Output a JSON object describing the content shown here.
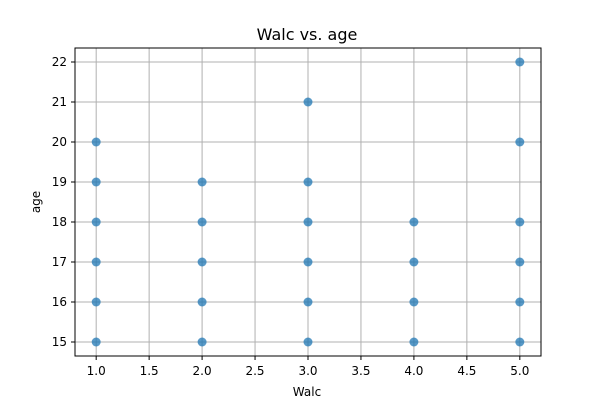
{
  "chart_data": {
    "type": "scatter",
    "title": "Walc vs. age",
    "xlabel": "Walc",
    "ylabel": "age",
    "xlim": [
      0.8,
      5.2
    ],
    "ylim": [
      14.65,
      22.35
    ],
    "xticks": [
      1.0,
      1.5,
      2.0,
      2.5,
      3.0,
      3.5,
      4.0,
      4.5,
      5.0
    ],
    "xtick_labels": [
      "1.0",
      "1.5",
      "2.0",
      "2.5",
      "3.0",
      "3.5",
      "4.0",
      "4.5",
      "5.0"
    ],
    "yticks": [
      15,
      16,
      17,
      18,
      19,
      20,
      21,
      22
    ],
    "ytick_labels": [
      "15",
      "16",
      "17",
      "18",
      "19",
      "20",
      "21",
      "22"
    ],
    "grid": true,
    "marker_color": "#1f77b4",
    "points": [
      {
        "x": 1,
        "y": 15
      },
      {
        "x": 1,
        "y": 16
      },
      {
        "x": 1,
        "y": 17
      },
      {
        "x": 1,
        "y": 18
      },
      {
        "x": 1,
        "y": 19
      },
      {
        "x": 1,
        "y": 20
      },
      {
        "x": 2,
        "y": 15
      },
      {
        "x": 2,
        "y": 16
      },
      {
        "x": 2,
        "y": 17
      },
      {
        "x": 2,
        "y": 18
      },
      {
        "x": 2,
        "y": 19
      },
      {
        "x": 3,
        "y": 15
      },
      {
        "x": 3,
        "y": 16
      },
      {
        "x": 3,
        "y": 17
      },
      {
        "x": 3,
        "y": 18
      },
      {
        "x": 3,
        "y": 19
      },
      {
        "x": 3,
        "y": 21
      },
      {
        "x": 4,
        "y": 15
      },
      {
        "x": 4,
        "y": 16
      },
      {
        "x": 4,
        "y": 17
      },
      {
        "x": 4,
        "y": 18
      },
      {
        "x": 5,
        "y": 15
      },
      {
        "x": 5,
        "y": 16
      },
      {
        "x": 5,
        "y": 17
      },
      {
        "x": 5,
        "y": 18
      },
      {
        "x": 5,
        "y": 20
      },
      {
        "x": 5,
        "y": 22
      }
    ]
  }
}
